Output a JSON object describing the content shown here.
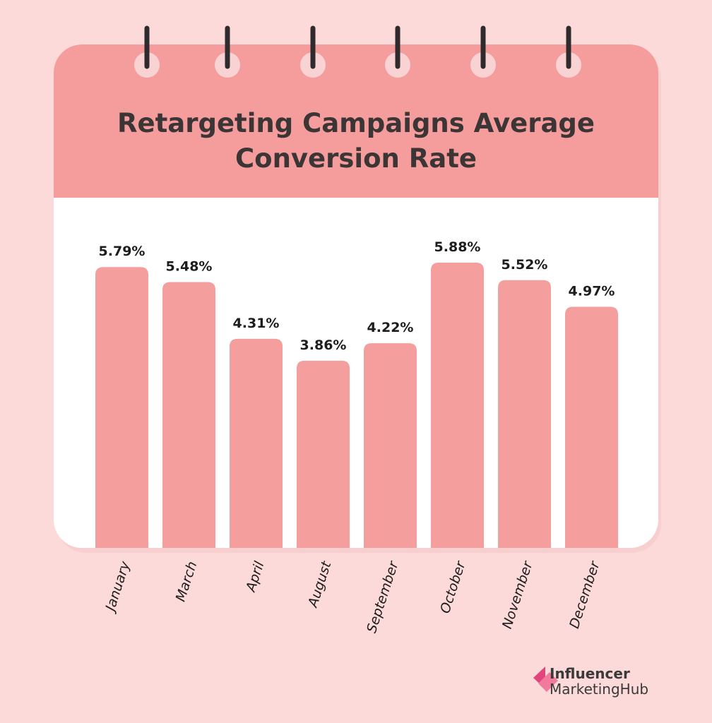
{
  "chart_data": {
    "type": "bar",
    "title": "Retargeting Campaigns Average Conversion Rate",
    "categories": [
      "January",
      "March",
      "April",
      "August",
      "September",
      "October",
      "November",
      "December"
    ],
    "values": [
      5.79,
      5.48,
      4.31,
      3.86,
      4.22,
      5.88,
      5.52,
      4.97
    ],
    "value_labels": [
      "5.79%",
      "5.48%",
      "4.31%",
      "3.86%",
      "4.22%",
      "5.88%",
      "5.52%",
      "4.97%"
    ],
    "color": "#f59e9e"
  },
  "logo": {
    "line1": "Influencer",
    "line2": "MarketingHub"
  }
}
